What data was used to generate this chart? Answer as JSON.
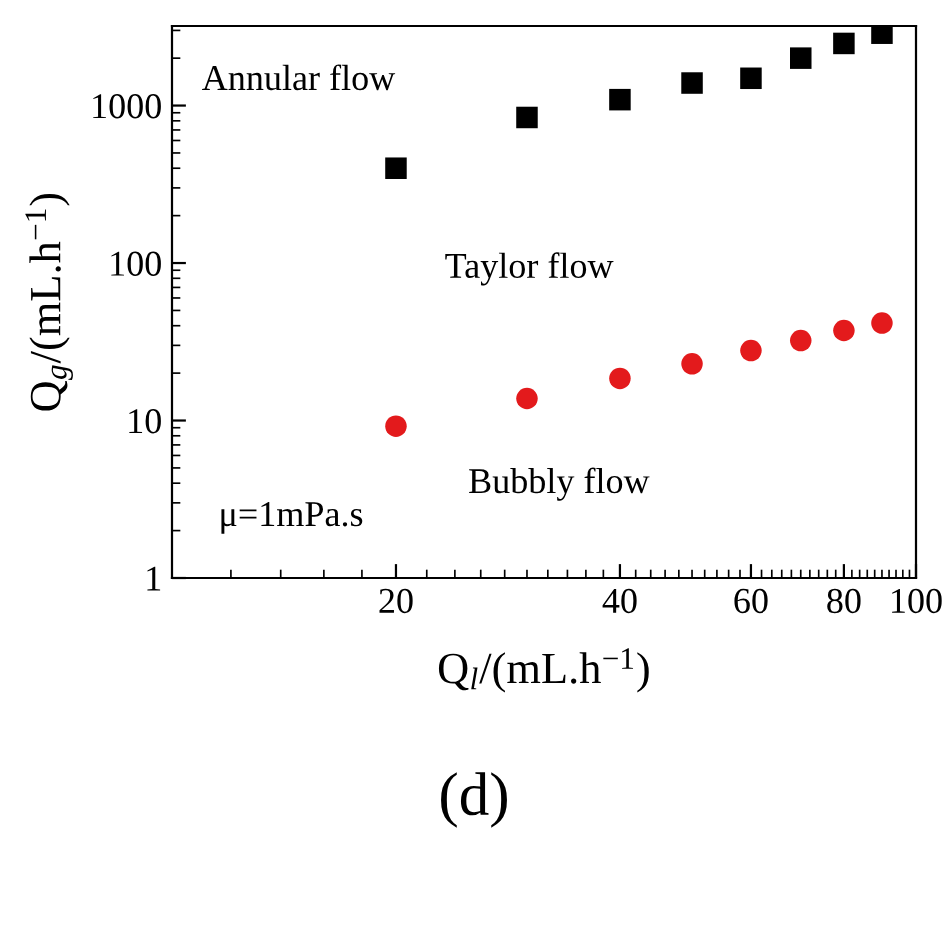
{
  "chart_data": {
    "type": "scatter",
    "xlabel": "Q$_{l}$/(mL.h$^{−1}$)",
    "ylabel": "Q$_{g}$/(mL.h$^{−1}$)",
    "log": "xy",
    "x": [
      20,
      30,
      40,
      50,
      60,
      70,
      80,
      90
    ],
    "series": [
      {
        "color": "#000000",
        "marker": "square",
        "values": [
          400,
          840,
          1090,
          1390,
          1490,
          2000,
          2480,
          2880
        ]
      },
      {
        "color": "#e31a1c",
        "marker": "circle",
        "values": [
          9.2,
          13.8,
          18.5,
          22.9,
          27.8,
          32.2,
          37.3,
          41.6
        ]
      }
    ],
    "xlim": [
      10,
      100
    ],
    "ylim": [
      1,
      3200
    ],
    "xticks": [
      20,
      40,
      60,
      80,
      100
    ],
    "yticks": [
      1,
      10,
      100,
      1000
    ],
    "grid": false,
    "annotations": [
      "Annular flow",
      "Taylor flow",
      "Bubbly flow",
      "μ=1mPa.s",
      "(d)"
    ]
  }
}
